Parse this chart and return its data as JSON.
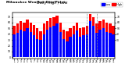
{
  "title": "Milwaukee Weather Dew Point",
  "subtitle": "Daily High / Low",
  "title_fontsize": 3.2,
  "subtitle_fontsize": 3.5,
  "background_color": "#ffffff",
  "plot_bg_color": "#ffffff",
  "bar_width": 0.8,
  "high_color": "#ff0000",
  "low_color": "#0000ff",
  "legend_high": "High",
  "legend_low": "Low",
  "ylim": [
    -2,
    78
  ],
  "yticks": [
    0,
    10,
    20,
    30,
    40,
    50,
    60,
    70
  ],
  "dates": [
    "1",
    "2",
    "3",
    "4",
    "5",
    "6",
    "7",
    "8",
    "9",
    "10",
    "11",
    "12",
    "13",
    "14",
    "15",
    "16",
    "17",
    "18",
    "19",
    "20",
    "21",
    "22",
    "23",
    "24",
    "25",
    "26",
    "27",
    "28",
    "29",
    "30",
    "31"
  ],
  "highs": [
    55,
    58,
    63,
    60,
    65,
    60,
    56,
    50,
    45,
    58,
    62,
    68,
    70,
    72,
    60,
    48,
    45,
    50,
    55,
    60,
    50,
    52,
    55,
    75,
    70,
    58,
    62,
    65,
    60,
    58,
    55
  ],
  "lows": [
    40,
    42,
    48,
    45,
    50,
    44,
    38,
    32,
    30,
    40,
    48,
    52,
    55,
    58,
    44,
    32,
    28,
    35,
    40,
    46,
    35,
    38,
    40,
    62,
    55,
    42,
    48,
    50,
    44,
    42,
    40
  ],
  "dashed_cols": [
    22,
    25
  ],
  "right_ytick_vals": [
    70,
    60,
    50,
    40,
    30
  ],
  "right_ytick_labels": [
    "70",
    "60",
    "50",
    "40",
    "30"
  ]
}
